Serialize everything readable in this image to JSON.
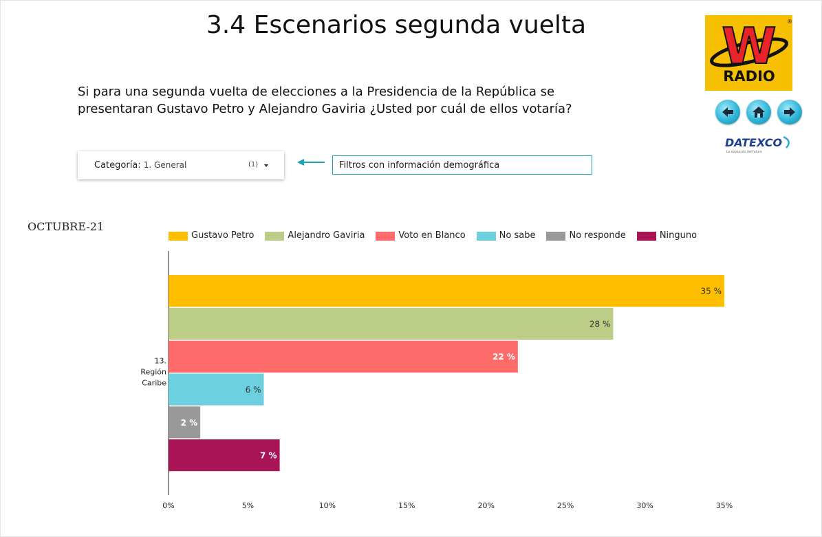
{
  "header": {
    "title": "3.4 Escenarios segunda vuelta"
  },
  "question": "Si para una segunda vuelta de elecciones a la Presidencia de la República se presentaran Gustavo Petro y Alejandro Gaviria ¿Usted por cuál de ellos votaría?",
  "logo": {
    "brand_letter": "W",
    "brand_text": "RADIO",
    "mark": "®",
    "color": "#f6c000",
    "accent": "#e8232a"
  },
  "nav": {
    "icons": [
      "back-arrow-icon",
      "home-icon",
      "forward-arrow-icon"
    ],
    "color": "#2fb5d9"
  },
  "sponsor": {
    "name": "DATEXCO",
    "tagline": "La evolución del futuro"
  },
  "filter": {
    "label": "Categoría:",
    "value": "1. General",
    "count": "(1)",
    "note": "Filtros con información demográfica"
  },
  "period": "OCTUBRE-21",
  "chart_data": {
    "type": "bar",
    "orientation": "horizontal",
    "category_label": [
      "13.",
      "Región",
      "Caribe"
    ],
    "series": [
      {
        "name": "Gustavo Petro",
        "value": 35,
        "label": "35 %",
        "color": "#ffbf00"
      },
      {
        "name": "Alejandro Gaviria",
        "value": 28,
        "label": "28 %",
        "color": "#bccd87"
      },
      {
        "name": "Voto en Blanco",
        "value": 22,
        "label": "22 %",
        "color": "#ff6b6b"
      },
      {
        "name": "No sabe",
        "value": 6,
        "label": "6 %",
        "color": "#6dd0de"
      },
      {
        "name": "No responde",
        "value": 2,
        "label": "2 %",
        "color": "#999999"
      },
      {
        "name": "Ninguno",
        "value": 7,
        "label": "7 %",
        "color": "#a81456"
      }
    ],
    "x_ticks": [
      "0%",
      "5%",
      "10%",
      "15%",
      "20%",
      "25%",
      "30%",
      "35%"
    ],
    "xlim": [
      0,
      35
    ],
    "grid": false,
    "legend_position": "top"
  }
}
